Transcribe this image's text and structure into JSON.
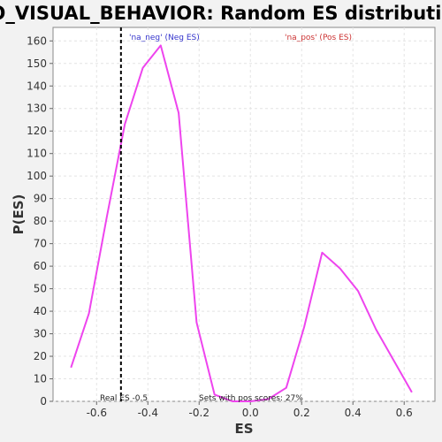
{
  "chart_data": {
    "type": "line",
    "title": "GO_VISUAL_BEHAVIOR: Random ES distribution",
    "xlabel": "ES",
    "ylabel": "P(ES)",
    "xlim": [
      -0.77,
      0.72
    ],
    "ylim": [
      0,
      166
    ],
    "x_ticks": [
      -0.6,
      -0.4,
      -0.2,
      0.0,
      0.2,
      0.4,
      0.6
    ],
    "x_tick_labels": [
      "-0.6",
      "-0.4",
      "-0.2",
      "0.0",
      "0.2",
      "0.4",
      "0.6"
    ],
    "y_ticks": [
      0,
      10,
      20,
      30,
      40,
      50,
      60,
      70,
      80,
      90,
      100,
      110,
      120,
      130,
      140,
      150,
      160
    ],
    "y_tick_labels": [
      "0",
      "10",
      "20",
      "30",
      "40",
      "50",
      "60",
      "70",
      "80",
      "90",
      "100",
      "110",
      "120",
      "130",
      "140",
      "150",
      "160"
    ],
    "grid": true,
    "series": [
      {
        "color": "#ee44ee",
        "x": [
          -0.7,
          -0.63,
          -0.56,
          -0.49,
          -0.42,
          -0.35,
          -0.28,
          -0.21,
          -0.14,
          -0.07,
          0.0,
          0.07,
          0.14,
          0.21,
          0.28,
          0.35,
          0.42,
          0.49,
          0.56,
          0.63
        ],
        "y": [
          15,
          39,
          82,
          123,
          148,
          158,
          128,
          35,
          3,
          0,
          0,
          1,
          6,
          33,
          66,
          59,
          49,
          32,
          18,
          4
        ]
      }
    ],
    "vline": {
      "x": -0.505,
      "label": "Real ES -0.5",
      "color": "#000000"
    },
    "annotations": {
      "neg": {
        "text": "'na_neg' (Neg ES)",
        "color": "#3333cc"
      },
      "pos": {
        "text": "'na_pos' (Pos ES)",
        "color": "#cc3333"
      },
      "sets": {
        "text": "Sets with pos scores: 27%"
      }
    },
    "colors": {
      "background": "#f2f2f2",
      "plot_bg": "#ffffff",
      "grid": "#e4e4e4",
      "line": "#ee44ee"
    }
  }
}
